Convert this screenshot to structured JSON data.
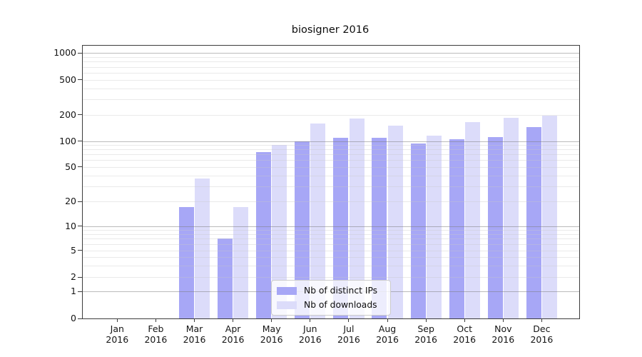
{
  "chart_data": {
    "type": "bar",
    "title": "biosigner 2016",
    "year_label": "2016",
    "categories": [
      "Jan",
      "Feb",
      "Mar",
      "Apr",
      "May",
      "Jun",
      "Jul",
      "Aug",
      "Sep",
      "Oct",
      "Nov",
      "Dec"
    ],
    "series": [
      {
        "name": "Nb of distinct IPs",
        "color": "#a7a7f6",
        "values": [
          0,
          0,
          17,
          7,
          75,
          100,
          110,
          110,
          93,
          106,
          112,
          146
        ]
      },
      {
        "name": "Nb of downloads",
        "color": "#dcdcfa",
        "values": [
          0,
          0,
          37,
          17,
          91,
          158,
          181,
          151,
          115,
          166,
          186,
          197
        ]
      }
    ],
    "yticks": [
      0,
      1,
      2,
      5,
      10,
      20,
      50,
      100,
      200,
      500,
      1000
    ],
    "yscale": "symlog",
    "ylim": [
      0,
      1200
    ],
    "grid": true,
    "legend_position": "lower center"
  }
}
